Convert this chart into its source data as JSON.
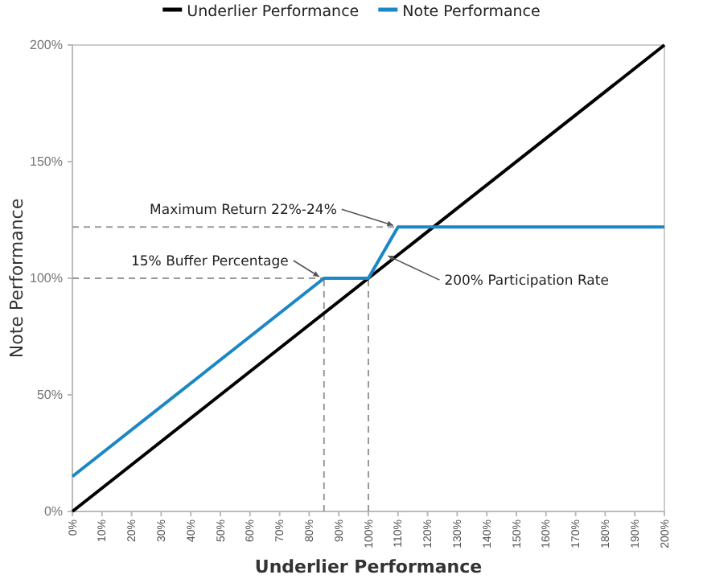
{
  "chart_data": {
    "type": "line",
    "xlabel": "Underlier Performance",
    "ylabel": "Note Performance",
    "legend": "top",
    "grid": false,
    "xlim": [
      0,
      200
    ],
    "ylim": [
      0,
      200
    ],
    "xticks": [
      {
        "value": 0,
        "label": "0%"
      },
      {
        "value": 10,
        "label": "10%"
      },
      {
        "value": 20,
        "label": "20%"
      },
      {
        "value": 30,
        "label": "30%"
      },
      {
        "value": 40,
        "label": "40%"
      },
      {
        "value": 50,
        "label": "50%"
      },
      {
        "value": 60,
        "label": "60%"
      },
      {
        "value": 70,
        "label": "70%"
      },
      {
        "value": 80,
        "label": "80%"
      },
      {
        "value": 90,
        "label": "90%"
      },
      {
        "value": 100,
        "label": "100%"
      },
      {
        "value": 110,
        "label": "110%"
      },
      {
        "value": 120,
        "label": "120%"
      },
      {
        "value": 130,
        "label": "130%"
      },
      {
        "value": 140,
        "label": "140%"
      },
      {
        "value": 150,
        "label": "150%"
      },
      {
        "value": 160,
        "label": "160%"
      },
      {
        "value": 170,
        "label": "170%"
      },
      {
        "value": 180,
        "label": "180%"
      },
      {
        "value": 190,
        "label": "190%"
      },
      {
        "value": 200,
        "label": "200%"
      }
    ],
    "yticks": [
      {
        "value": 0,
        "label": "0%"
      },
      {
        "value": 50,
        "label": "50%"
      },
      {
        "value": 100,
        "label": "100%"
      },
      {
        "value": 150,
        "label": "150%"
      },
      {
        "value": 200,
        "label": "200%"
      }
    ],
    "series": [
      {
        "color": "#999999",
        "line_style": "dashed",
        "x": [
          0,
          110
        ],
        "values": [
          122,
          122
        ]
      },
      {
        "color": "#999999",
        "line_style": "dashed",
        "x": [
          0,
          85
        ],
        "values": [
          100,
          100
        ]
      },
      {
        "color": "#999999",
        "line_style": "dashed",
        "x": [
          85,
          85
        ],
        "values": [
          0,
          100
        ]
      },
      {
        "color": "#999999",
        "line_style": "dashed",
        "x": [
          100,
          100
        ],
        "values": [
          0,
          100
        ]
      },
      {
        "name": "Underlier Performance",
        "color": "#000000",
        "line_style": "solid",
        "x": [
          0,
          200
        ],
        "values": [
          0,
          200
        ]
      },
      {
        "name": "Note Performance",
        "color": "#1b87c4",
        "line_style": "solid",
        "x": [
          0,
          85,
          100,
          110,
          200
        ],
        "values": [
          15,
          100,
          100,
          122,
          122
        ]
      }
    ],
    "annotations": [
      {
        "text": "Maximum Return 22%-24%",
        "x": 110,
        "y": 122
      },
      {
        "text": "15% Buffer Percentage",
        "x": 85,
        "y": 100
      },
      {
        "text": "200% Participation Rate",
        "x": 105,
        "y": 111
      }
    ]
  }
}
